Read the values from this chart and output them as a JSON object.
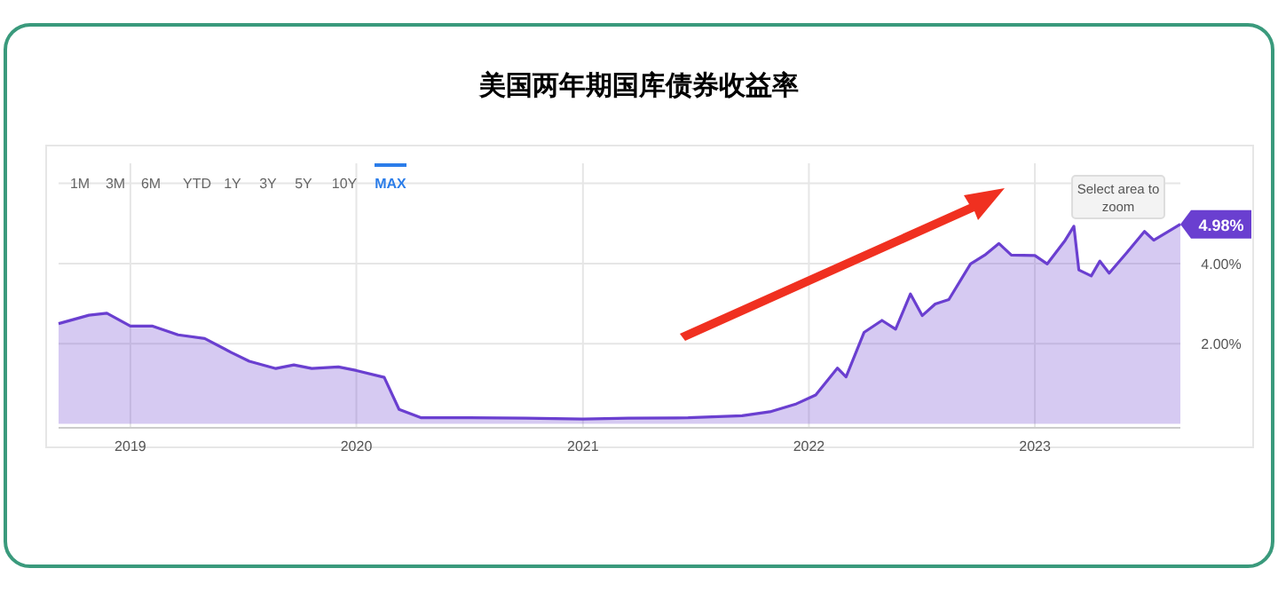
{
  "chart_data": {
    "type": "area",
    "title": "美国两年期国库债券收益率",
    "x": [
      "2018-09-07",
      "2018-10-26",
      "2018-11-24",
      "2019-01-01",
      "2019-02-05",
      "2019-03-19",
      "2019-05-01",
      "2019-06-13",
      "2019-07-12",
      "2019-08-24",
      "2019-09-22",
      "2019-10-21",
      "2019-12-03",
      "2020-01-01",
      "2020-02-15",
      "2020-03-10",
      "2020-04-15",
      "2020-07-01",
      "2020-10-01",
      "2021-01-01",
      "2021-03-15",
      "2021-06-20",
      "2021-09-15",
      "2021-10-30",
      "2021-12-12",
      "2022-01-12",
      "2022-02-16",
      "2022-03-02",
      "2022-03-31",
      "2022-04-29",
      "2022-05-21",
      "2022-06-14",
      "2022-07-03",
      "2022-07-24",
      "2022-08-15",
      "2022-09-19",
      "2022-10-12",
      "2022-11-04",
      "2022-11-24",
      "2023-01-01",
      "2023-01-21",
      "2023-02-19",
      "2023-03-05",
      "2023-03-13",
      "2023-04-02",
      "2023-04-16",
      "2023-05-01",
      "2023-05-30",
      "2023-06-27",
      "2023-07-12",
      "2023-08-24"
    ],
    "series": [
      {
        "color": "#6a3fd0",
        "values": [
          2.5,
          2.71,
          2.76,
          2.44,
          2.44,
          2.22,
          2.13,
          1.78,
          1.56,
          1.38,
          1.47,
          1.38,
          1.42,
          1.33,
          1.16,
          0.36,
          0.15,
          0.15,
          0.14,
          0.12,
          0.14,
          0.15,
          0.2,
          0.3,
          0.5,
          0.72,
          1.39,
          1.17,
          2.28,
          2.58,
          2.36,
          3.24,
          2.7,
          2.99,
          3.1,
          3.99,
          4.21,
          4.5,
          4.21,
          4.2,
          3.99,
          4.58,
          4.93,
          3.84,
          3.69,
          4.06,
          3.76,
          4.28,
          4.8,
          4.58,
          4.98
        ],
        "value_labels": [
          null,
          null,
          null,
          null,
          null,
          null,
          null,
          null,
          null,
          null,
          null,
          null,
          null,
          null,
          null,
          null,
          null,
          null,
          null,
          null,
          null,
          null,
          null,
          null,
          null,
          null,
          null,
          null,
          null,
          null,
          null,
          null,
          null,
          null,
          null,
          null,
          null,
          null,
          null,
          null,
          null,
          null,
          null,
          null,
          null,
          null,
          null,
          null,
          null,
          null,
          "4.98%"
        ]
      }
    ],
    "xlim": [
      "2018-09-07",
      "2023-08-24"
    ],
    "xticks": [
      "2019",
      "2020",
      "2021",
      "2022",
      "2023"
    ],
    "ylim": [
      -0.1,
      6.5
    ],
    "yticks": [
      {
        "value": 2,
        "label": "2.00%"
      },
      {
        "value": 4,
        "label": "4.00%"
      },
      {
        "value": 6,
        "label": null
      }
    ],
    "grid": true,
    "annotations": [
      "1M",
      "3M",
      "6M",
      "YTD",
      "1Y",
      "3Y",
      "5Y",
      "10Y",
      "MAX",
      "Select area to zoom"
    ]
  }
}
